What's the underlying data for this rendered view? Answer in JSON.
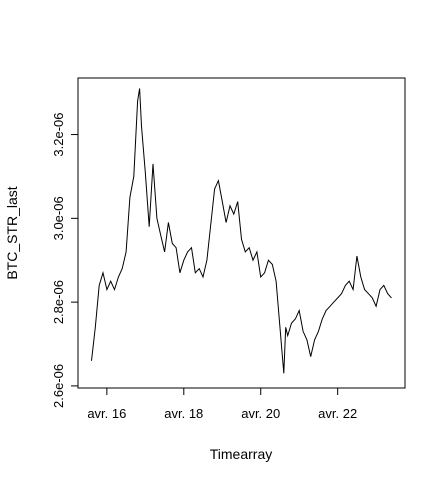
{
  "chart_data": {
    "type": "line",
    "xlabel": "Timearray",
    "ylabel": "BTC_STR_last",
    "title": "",
    "x_tick_labels": [
      "avr. 16",
      "avr. 18",
      "avr. 20",
      "avr. 22"
    ],
    "x_ticks": [
      16,
      18,
      20,
      22
    ],
    "y_tick_labels": [
      "2.6e-06",
      "2.8e-06",
      "3.0e-06",
      "3.2e-06"
    ],
    "y_ticks": [
      2.6e-06,
      2.8e-06,
      3e-06,
      3.2e-06
    ],
    "xlim": [
      15.25,
      23.75
    ],
    "ylim": [
      2.595e-06,
      3.335e-06
    ],
    "grid": false,
    "series": [
      {
        "x": [
          15.6,
          15.7,
          15.8,
          15.9,
          16.0,
          16.1,
          16.2,
          16.3,
          16.4,
          16.5,
          16.6,
          16.7,
          16.8,
          16.85,
          16.9,
          17.0,
          17.1,
          17.2,
          17.3,
          17.4,
          17.5,
          17.6,
          17.7,
          17.8,
          17.9,
          18.0,
          18.1,
          18.2,
          18.3,
          18.4,
          18.5,
          18.6,
          18.8,
          18.9,
          19.0,
          19.1,
          19.2,
          19.3,
          19.4,
          19.5,
          19.6,
          19.7,
          19.8,
          19.9,
          20.0,
          20.1,
          20.2,
          20.3,
          20.4,
          20.6,
          20.65,
          20.7,
          20.8,
          20.9,
          21.0,
          21.1,
          21.2,
          21.3,
          21.4,
          21.5,
          21.6,
          21.7,
          21.8,
          21.9,
          22.0,
          22.1,
          22.2,
          22.3,
          22.4,
          22.5,
          22.6,
          22.7,
          22.8,
          22.9,
          23.0,
          23.1,
          23.2,
          23.3,
          23.4
        ],
        "values": [
          2.66e-06,
          2.74e-06,
          2.84e-06,
          2.87e-06,
          2.83e-06,
          2.85e-06,
          2.83e-06,
          2.86e-06,
          2.88e-06,
          2.92e-06,
          3.05e-06,
          3.1e-06,
          3.28e-06,
          3.31e-06,
          3.22e-06,
          3.11e-06,
          2.98e-06,
          3.13e-06,
          3e-06,
          2.96e-06,
          2.92e-06,
          2.99e-06,
          2.94e-06,
          2.93e-06,
          2.87e-06,
          2.9e-06,
          2.92e-06,
          2.93e-06,
          2.87e-06,
          2.88e-06,
          2.86e-06,
          2.9e-06,
          3.07e-06,
          3.09e-06,
          3.04e-06,
          2.99e-06,
          3.03e-06,
          3.01e-06,
          3.04e-06,
          2.95e-06,
          2.92e-06,
          2.93e-06,
          2.9e-06,
          2.92e-06,
          2.86e-06,
          2.87e-06,
          2.9e-06,
          2.89e-06,
          2.85e-06,
          2.63e-06,
          2.74e-06,
          2.72e-06,
          2.75e-06,
          2.76e-06,
          2.78e-06,
          2.73e-06,
          2.71e-06,
          2.67e-06,
          2.71e-06,
          2.73e-06,
          2.76e-06,
          2.78e-06,
          2.79e-06,
          2.8e-06,
          2.81e-06,
          2.82e-06,
          2.84e-06,
          2.85e-06,
          2.83e-06,
          2.91e-06,
          2.86e-06,
          2.83e-06,
          2.82e-06,
          2.81e-06,
          2.79e-06,
          2.83e-06,
          2.84e-06,
          2.82e-06,
          2.81e-06
        ]
      }
    ],
    "line_color": "#000000"
  }
}
